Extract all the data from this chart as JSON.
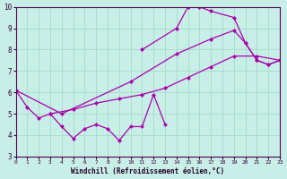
{
  "xlabel": "Windchill (Refroidissement éolien,°C)",
  "xlim": [
    0,
    23
  ],
  "ylim": [
    3,
    10
  ],
  "yticks": [
    3,
    4,
    5,
    6,
    7,
    8,
    9,
    10
  ],
  "xticks": [
    0,
    1,
    2,
    3,
    4,
    5,
    6,
    7,
    8,
    9,
    10,
    11,
    12,
    13,
    14,
    15,
    16,
    17,
    18,
    19,
    20,
    21,
    22,
    23
  ],
  "background_color": "#c8eee8",
  "grid_color": "#aaddcc",
  "line_color": "#aa00aa",
  "line1_x": [
    0,
    1,
    2,
    3,
    4,
    5,
    6,
    7,
    8,
    9,
    10,
    11,
    12,
    13
  ],
  "line1_y": [
    6.1,
    5.3,
    4.8,
    5.0,
    4.4,
    3.85,
    4.3,
    4.5,
    4.3,
    3.75,
    4.4,
    4.4,
    5.9,
    4.5
  ],
  "line2_x": [
    11,
    14,
    15,
    16,
    17,
    19,
    20,
    21,
    22,
    23
  ],
  "line2_y": [
    8.0,
    9.0,
    10.0,
    10.0,
    9.8,
    9.5,
    8.3,
    7.5,
    7.3,
    7.5
  ],
  "line3_x": [
    0,
    4,
    10,
    14,
    17,
    19,
    20,
    21,
    22,
    23
  ],
  "line3_y": [
    6.1,
    5.0,
    6.5,
    7.8,
    8.5,
    8.9,
    8.3,
    7.5,
    7.3,
    7.5
  ],
  "line4_x": [
    3,
    5,
    7,
    9,
    11,
    13,
    15,
    17,
    19,
    21,
    23
  ],
  "line4_y": [
    5.0,
    5.2,
    5.5,
    5.7,
    5.9,
    6.2,
    6.7,
    7.2,
    7.7,
    7.7,
    7.5
  ]
}
